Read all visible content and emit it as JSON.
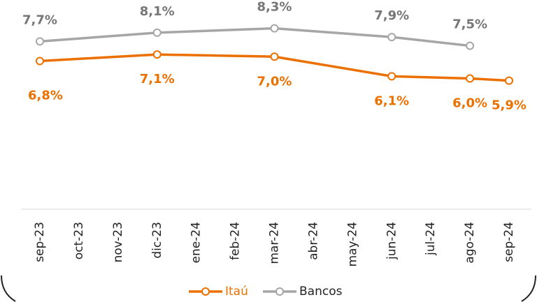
{
  "chart_data": {
    "type": "line",
    "categories": [
      "sep-23",
      "oct-23",
      "nov-23",
      "dic-23",
      "ene-24",
      "feb-24",
      "mar-24",
      "abr-24",
      "may-24",
      "jun-24",
      "jul-24",
      "ago-24",
      "sep-24"
    ],
    "series": [
      {
        "name": "Itaú",
        "color": "#ec7000",
        "label_color": "#ec7000",
        "values": [
          6.8,
          null,
          null,
          7.1,
          null,
          null,
          7.0,
          null,
          null,
          6.1,
          null,
          6.0,
          5.9
        ],
        "value_labels": [
          "6,8%",
          null,
          null,
          "7,1%",
          null,
          null,
          "7,0%",
          null,
          null,
          "6,1%",
          null,
          "6,0%",
          "5,9%"
        ]
      },
      {
        "name": "Bancos",
        "color": "#a6a6a6",
        "label_color": "#767676",
        "values": [
          7.7,
          null,
          null,
          8.1,
          null,
          null,
          8.3,
          null,
          null,
          7.9,
          null,
          7.5,
          null
        ],
        "value_labels": [
          "7,7%",
          null,
          null,
          "8,1%",
          null,
          null,
          "8,3%",
          null,
          null,
          "7,9%",
          null,
          "7,5%",
          null
        ]
      }
    ],
    "ylim": [
      0,
      9.6
    ],
    "legend": "bottom"
  }
}
